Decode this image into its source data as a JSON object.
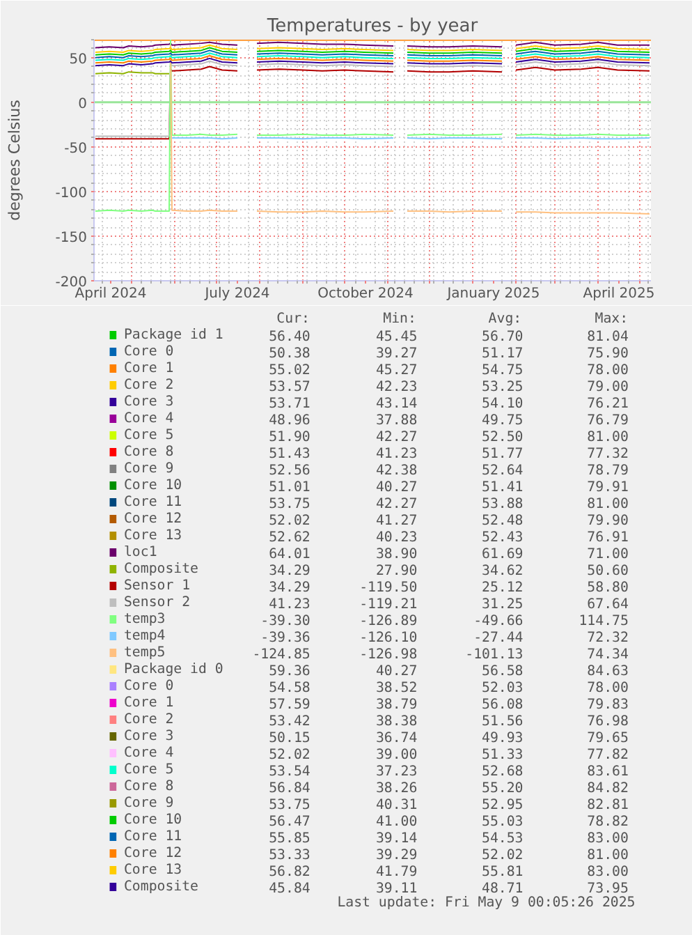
{
  "chart_data": {
    "type": "line",
    "title": "Temperatures - by year",
    "ylabel": "degrees Celsius",
    "x": [
      "2024-04-05",
      "2024-04-15",
      "2024-04-25",
      "2024-04-29",
      "2024-05-08",
      "2024-05-16",
      "2024-05-18",
      "2024-05-28",
      "2024-05-29",
      "2024-05-30",
      "2024-06-10",
      "2024-06-20",
      "2024-06-26",
      "2024-07-05",
      "2024-07-16",
      "2024-07-23",
      "2024-07-30",
      "2024-08-15",
      "2024-09-01",
      "2024-09-15",
      "2024-10-01",
      "2024-10-15",
      "2024-11-05",
      "2024-11-10",
      "2024-11-15",
      "2024-12-01",
      "2024-12-15",
      "2025-01-01",
      "2025-01-22",
      "2025-01-28",
      "2025-02-01",
      "2025-02-15",
      "2025-03-01",
      "2025-03-20",
      "2025-04-01",
      "2025-04-15",
      "2025-05-08"
    ],
    "xlim": [
      "2024-04-04",
      "2025-05-09"
    ],
    "xticks": [
      {
        "value": "2024-04-16",
        "label": "April 2024"
      },
      {
        "value": "2024-05-01",
        "label": null
      },
      {
        "value": "2024-06-01",
        "label": null
      },
      {
        "value": "2024-07-01",
        "label": null
      },
      {
        "value": "2024-07-16",
        "label": "July 2024"
      },
      {
        "value": "2024-08-01",
        "label": null
      },
      {
        "value": "2024-09-01",
        "label": null
      },
      {
        "value": "2024-10-01",
        "label": null
      },
      {
        "value": "2024-10-16",
        "label": "October 2024"
      },
      {
        "value": "2024-11-01",
        "label": null
      },
      {
        "value": "2024-12-01",
        "label": null
      },
      {
        "value": "2025-01-01",
        "label": null
      },
      {
        "value": "2025-01-16",
        "label": "January 2025"
      },
      {
        "value": "2025-02-01",
        "label": null
      },
      {
        "value": "2025-03-01",
        "label": null
      },
      {
        "value": "2025-04-01",
        "label": null
      },
      {
        "value": "2025-04-16",
        "label": "April 2025"
      },
      {
        "value": "2025-05-01",
        "label": null
      }
    ],
    "ylim": [
      -200,
      70
    ],
    "yticks": [
      -200,
      -150,
      -100,
      -50,
      0,
      50
    ],
    "grid": true,
    "legend": "bottom",
    "ref_lines": [
      {
        "axis": "y",
        "value": 0,
        "color": "#99e699"
      },
      {
        "axis": "y",
        "value": 70,
        "color": "#ff8000"
      }
    ],
    "series": [
      {
        "name": "Package id 1",
        "color": "#00cc00",
        "values": [
          null,
          null,
          null,
          null,
          null,
          null,
          null,
          null,
          null,
          null,
          null,
          null,
          null,
          null,
          null,
          null,
          null,
          null,
          null,
          null,
          null,
          null,
          null,
          null,
          null,
          null,
          null,
          null,
          null,
          null,
          null,
          null,
          null,
          null,
          null,
          null,
          null
        ]
      },
      {
        "name": "Core 0",
        "color": "#0066b3",
        "values": [
          null,
          null,
          null,
          null,
          null,
          null,
          null,
          null,
          null,
          null,
          null,
          null,
          null,
          null,
          null,
          null,
          null,
          null,
          null,
          null,
          null,
          null,
          null,
          null,
          null,
          null,
          null,
          null,
          null,
          null,
          null,
          null,
          null,
          null,
          null,
          null,
          null
        ]
      },
      {
        "name": "Core 1",
        "color": "#ff8000",
        "values": [
          null,
          null,
          null,
          null,
          null,
          null,
          null,
          null,
          null,
          null,
          null,
          null,
          null,
          null,
          null,
          null,
          null,
          null,
          null,
          null,
          null,
          null,
          null,
          null,
          null,
          null,
          null,
          null,
          null,
          null,
          null,
          null,
          null,
          null,
          null,
          null,
          null
        ]
      },
      {
        "name": "Core 2",
        "color": "#ffcc00",
        "values": [
          null,
          null,
          null,
          null,
          null,
          null,
          null,
          null,
          null,
          null,
          null,
          null,
          null,
          null,
          null,
          null,
          null,
          null,
          null,
          null,
          null,
          null,
          null,
          null,
          null,
          null,
          null,
          null,
          null,
          null,
          null,
          null,
          null,
          null,
          null,
          null,
          null
        ]
      },
      {
        "name": "Core 3",
        "color": "#330099",
        "values": [
          null,
          null,
          null,
          null,
          null,
          null,
          null,
          null,
          null,
          null,
          null,
          null,
          null,
          null,
          null,
          null,
          null,
          null,
          null,
          null,
          null,
          null,
          null,
          null,
          null,
          null,
          null,
          null,
          null,
          null,
          null,
          null,
          null,
          null,
          null,
          null,
          null
        ]
      },
      {
        "name": "Core 4",
        "color": "#990099",
        "values": [
          null,
          null,
          null,
          null,
          null,
          null,
          null,
          null,
          null,
          null,
          null,
          null,
          null,
          null,
          null,
          null,
          null,
          null,
          null,
          null,
          null,
          null,
          null,
          null,
          null,
          null,
          null,
          null,
          null,
          null,
          null,
          null,
          null,
          null,
          null,
          null,
          null
        ]
      },
      {
        "name": "Core 5",
        "color": "#ccff00",
        "values": [
          null,
          null,
          null,
          null,
          null,
          null,
          null,
          null,
          null,
          null,
          null,
          null,
          null,
          null,
          null,
          null,
          null,
          null,
          null,
          null,
          null,
          null,
          null,
          null,
          null,
          null,
          null,
          null,
          null,
          null,
          null,
          null,
          null,
          null,
          null,
          null,
          null
        ]
      },
      {
        "name": "Core 8",
        "color": "#ff0000",
        "values": [
          null,
          null,
          null,
          null,
          null,
          null,
          null,
          null,
          null,
          null,
          null,
          null,
          null,
          null,
          null,
          null,
          null,
          null,
          null,
          null,
          null,
          null,
          null,
          null,
          null,
          null,
          null,
          null,
          null,
          null,
          null,
          null,
          null,
          null,
          null,
          null,
          null
        ]
      },
      {
        "name": "Core 9",
        "color": "#808080",
        "values": [
          null,
          null,
          null,
          null,
          null,
          null,
          null,
          null,
          null,
          null,
          null,
          null,
          null,
          null,
          null,
          null,
          null,
          null,
          null,
          null,
          null,
          null,
          null,
          null,
          null,
          null,
          null,
          null,
          null,
          null,
          null,
          null,
          null,
          null,
          null,
          null,
          null
        ]
      },
      {
        "name": "Core 10",
        "color": "#008f00",
        "values": [
          null,
          null,
          null,
          null,
          null,
          null,
          null,
          null,
          null,
          null,
          null,
          null,
          null,
          null,
          null,
          null,
          null,
          null,
          null,
          null,
          null,
          null,
          null,
          null,
          null,
          null,
          null,
          null,
          null,
          null,
          null,
          null,
          null,
          null,
          null,
          null,
          null
        ]
      },
      {
        "name": "Core 11",
        "color": "#00487d",
        "values": [
          null,
          null,
          null,
          null,
          null,
          null,
          null,
          null,
          null,
          null,
          null,
          null,
          null,
          null,
          null,
          null,
          null,
          null,
          null,
          null,
          null,
          null,
          null,
          null,
          null,
          null,
          null,
          null,
          null,
          null,
          null,
          null,
          null,
          null,
          null,
          null,
          null
        ]
      },
      {
        "name": "Core 12",
        "color": "#b35a00",
        "values": [
          null,
          null,
          null,
          null,
          null,
          null,
          null,
          null,
          null,
          null,
          null,
          null,
          null,
          null,
          null,
          null,
          null,
          null,
          null,
          null,
          null,
          null,
          null,
          null,
          null,
          null,
          null,
          null,
          null,
          null,
          null,
          null,
          null,
          null,
          null,
          null,
          null
        ]
      },
      {
        "name": "Core 13",
        "color": "#b38f00",
        "values": [
          null,
          null,
          null,
          null,
          null,
          null,
          null,
          null,
          null,
          null,
          null,
          null,
          null,
          null,
          null,
          null,
          null,
          null,
          null,
          null,
          null,
          null,
          null,
          null,
          null,
          null,
          null,
          null,
          null,
          null,
          null,
          null,
          null,
          null,
          null,
          null,
          null
        ]
      },
      {
        "name": "loc1",
        "color": "#6b006b",
        "values": [
          61,
          62,
          61,
          63,
          62,
          63,
          64,
          65,
          66,
          64,
          65,
          66,
          67,
          65,
          64,
          null,
          66,
          67,
          66,
          65,
          65,
          64,
          63,
          null,
          63,
          62,
          62,
          63,
          62,
          null,
          64,
          67,
          64,
          65,
          67,
          64,
          64
        ]
      },
      {
        "name": "Composite",
        "color": "#8fb300",
        "values": [
          32,
          33,
          32,
          34,
          33,
          33,
          32,
          32,
          null,
          null,
          null,
          null,
          null,
          null,
          null,
          null,
          null,
          null,
          null,
          null,
          null,
          null,
          null,
          null,
          null,
          null,
          null,
          null,
          null,
          null,
          null,
          null,
          null,
          null,
          null,
          null,
          null
        ]
      },
      {
        "name": "Sensor 1",
        "color": "#b30000",
        "values": [
          -41,
          -41,
          -41,
          -41,
          -41,
          -41,
          -41,
          -41,
          37,
          35,
          36,
          37,
          40,
          36,
          35,
          null,
          36,
          37,
          36,
          35,
          36,
          35,
          34,
          null,
          35,
          34,
          34,
          35,
          34,
          null,
          36,
          39,
          36,
          37,
          39,
          36,
          35
        ]
      },
      {
        "name": "Sensor 2",
        "color": "#bebebe",
        "values": [
          -38,
          -38,
          -38,
          -38,
          -38,
          -38,
          -38,
          -38,
          43,
          41,
          42,
          43,
          46,
          42,
          41,
          null,
          42,
          43,
          42,
          41,
          42,
          41,
          40,
          null,
          41,
          40,
          40,
          41,
          40,
          null,
          42,
          45,
          42,
          43,
          45,
          42,
          41
        ]
      },
      {
        "name": "temp3",
        "color": "#80ff80",
        "values": [
          -122,
          -121,
          -122,
          -121,
          -122,
          -121,
          -122,
          -122,
          70,
          -37,
          -37,
          -36,
          -37,
          -37,
          -36,
          null,
          -37,
          -37,
          -36,
          -37,
          -37,
          -36,
          -37,
          null,
          -37,
          -36,
          -37,
          -37,
          -36,
          null,
          -37,
          -36,
          -37,
          -37,
          -36,
          -37,
          -37
        ]
      },
      {
        "name": "temp4",
        "color": "#80c9ff",
        "values": [
          null,
          null,
          null,
          null,
          null,
          null,
          null,
          null,
          null,
          -40,
          -40,
          -40,
          -40,
          -41,
          -40,
          null,
          -40,
          -40,
          -41,
          -40,
          -40,
          -41,
          -40,
          null,
          -40,
          -41,
          -40,
          -40,
          -41,
          null,
          -40,
          -40,
          -41,
          -40,
          -41,
          -41,
          -40
        ]
      },
      {
        "name": "temp5",
        "color": "#ffc080",
        "values": [
          null,
          null,
          null,
          null,
          null,
          null,
          null,
          null,
          64,
          -121,
          -122,
          -122,
          -121,
          -122,
          -122,
          null,
          -122,
          -123,
          -123,
          -122,
          -123,
          -123,
          -122,
          null,
          -122,
          -122,
          -123,
          -122,
          -122,
          null,
          -123,
          -123,
          -124,
          -124,
          -124,
          -124,
          -125
        ]
      },
      {
        "name": "Package id 0",
        "color": "#ffe680",
        "values": [
          null,
          null,
          null,
          null,
          null,
          null,
          null,
          null,
          null,
          null,
          null,
          null,
          null,
          null,
          null,
          null,
          null,
          null,
          null,
          null,
          null,
          null,
          null,
          null,
          null,
          null,
          null,
          null,
          null,
          null,
          null,
          null,
          null,
          null,
          null,
          null,
          null
        ]
      },
      {
        "name": "Core 0",
        "color": "#aa80ff",
        "values": [
          null,
          null,
          null,
          null,
          null,
          null,
          null,
          null,
          null,
          null,
          null,
          null,
          null,
          null,
          null,
          null,
          null,
          null,
          null,
          null,
          null,
          null,
          null,
          null,
          null,
          null,
          null,
          null,
          null,
          null,
          null,
          null,
          null,
          null,
          null,
          null,
          null
        ]
      },
      {
        "name": "Core 1",
        "color": "#ee00cc",
        "values": [
          null,
          null,
          null,
          null,
          null,
          null,
          null,
          null,
          null,
          null,
          null,
          null,
          null,
          null,
          null,
          null,
          null,
          null,
          null,
          null,
          null,
          null,
          null,
          null,
          null,
          null,
          null,
          null,
          null,
          null,
          null,
          null,
          null,
          null,
          null,
          null,
          null
        ]
      },
      {
        "name": "Core 2",
        "color": "#ff8080",
        "values": [
          null,
          null,
          null,
          null,
          null,
          null,
          null,
          null,
          null,
          null,
          null,
          null,
          null,
          null,
          null,
          null,
          null,
          null,
          null,
          null,
          null,
          null,
          null,
          null,
          null,
          null,
          null,
          null,
          null,
          null,
          null,
          null,
          null,
          null,
          null,
          null,
          null
        ]
      },
      {
        "name": "Core 3",
        "color": "#666600",
        "values": [
          null,
          null,
          null,
          null,
          null,
          null,
          null,
          null,
          null,
          null,
          null,
          null,
          null,
          null,
          null,
          null,
          null,
          null,
          null,
          null,
          null,
          null,
          null,
          null,
          null,
          null,
          null,
          null,
          null,
          null,
          null,
          null,
          null,
          null,
          null,
          null,
          null
        ]
      },
      {
        "name": "Core 4",
        "color": "#ffbfff",
        "values": [
          null,
          null,
          null,
          null,
          null,
          null,
          null,
          null,
          null,
          null,
          null,
          null,
          null,
          null,
          null,
          null,
          null,
          null,
          null,
          null,
          null,
          null,
          null,
          null,
          null,
          null,
          null,
          null,
          null,
          null,
          null,
          null,
          null,
          null,
          null,
          null,
          null
        ]
      },
      {
        "name": "Core 5",
        "color": "#00ffcc",
        "values": [
          47,
          48,
          47,
          49,
          48,
          49,
          50,
          51,
          52,
          50,
          51,
          52,
          55,
          51,
          50,
          null,
          51,
          52,
          51,
          50,
          51,
          50,
          49,
          null,
          50,
          49,
          49,
          50,
          49,
          null,
          51,
          54,
          51,
          52,
          54,
          51,
          50
        ]
      },
      {
        "name": "Core 8",
        "color": "#cc6699",
        "values": [
          null,
          null,
          null,
          null,
          null,
          null,
          null,
          null,
          null,
          null,
          null,
          null,
          null,
          null,
          null,
          null,
          null,
          null,
          null,
          null,
          null,
          null,
          null,
          null,
          null,
          null,
          null,
          null,
          null,
          null,
          null,
          null,
          null,
          null,
          null,
          null,
          null
        ]
      },
      {
        "name": "Core 9",
        "color": "#999900",
        "values": [
          null,
          null,
          null,
          null,
          null,
          null,
          null,
          null,
          null,
          null,
          null,
          null,
          null,
          null,
          null,
          null,
          null,
          null,
          null,
          null,
          null,
          null,
          null,
          null,
          null,
          null,
          null,
          null,
          null,
          null,
          null,
          null,
          null,
          null,
          null,
          null,
          null
        ]
      },
      {
        "name": "Core 10",
        "color": "#00cc00",
        "values": [
          53,
          54,
          53,
          55,
          54,
          55,
          56,
          57,
          58,
          56,
          57,
          58,
          61,
          57,
          56,
          null,
          57,
          58,
          57,
          56,
          57,
          56,
          55,
          null,
          56,
          55,
          55,
          56,
          55,
          null,
          57,
          60,
          57,
          58,
          60,
          57,
          56
        ]
      },
      {
        "name": "Core 11",
        "color": "#0066b3",
        "values": [
          50,
          51,
          50,
          52,
          51,
          52,
          53,
          54,
          55,
          53,
          54,
          55,
          58,
          54,
          53,
          null,
          54,
          55,
          54,
          53,
          54,
          53,
          52,
          null,
          53,
          52,
          52,
          53,
          52,
          null,
          54,
          57,
          54,
          55,
          57,
          54,
          53
        ]
      },
      {
        "name": "Core 12",
        "color": "#ff8000",
        "values": [
          44,
          45,
          44,
          46,
          45,
          46,
          47,
          48,
          49,
          47,
          48,
          49,
          52,
          48,
          47,
          null,
          48,
          49,
          48,
          47,
          48,
          47,
          46,
          null,
          47,
          46,
          46,
          47,
          46,
          null,
          48,
          51,
          48,
          49,
          51,
          48,
          47
        ]
      },
      {
        "name": "Core 13",
        "color": "#ffcc00",
        "values": [
          56,
          57,
          56,
          58,
          57,
          58,
          59,
          60,
          61,
          59,
          60,
          61,
          64,
          60,
          59,
          null,
          60,
          61,
          60,
          59,
          60,
          59,
          58,
          null,
          59,
          58,
          58,
          59,
          58,
          null,
          60,
          63,
          60,
          61,
          63,
          60,
          59
        ]
      },
      {
        "name": "Composite",
        "color": "#330099",
        "values": [
          41,
          42,
          41,
          43,
          42,
          43,
          44,
          45,
          46,
          44,
          45,
          46,
          49,
          45,
          44,
          null,
          45,
          46,
          45,
          44,
          45,
          44,
          43,
          null,
          44,
          43,
          43,
          44,
          43,
          null,
          45,
          48,
          45,
          46,
          48,
          45,
          44
        ]
      }
    ],
    "annotations": [
      "Cur:",
      "Min:",
      "Avg:",
      "Max:",
      "56.40",
      "45.45",
      "56.70",
      "81.04",
      "50.38",
      "39.27",
      "51.17",
      "75.90",
      "55.02",
      "45.27",
      "54.75",
      "78.00",
      "53.57",
      "42.23",
      "53.25",
      "79.00",
      "53.71",
      "43.14",
      "54.10",
      "76.21",
      "48.96",
      "37.88",
      "49.75",
      "76.79",
      "51.90",
      "42.27",
      "52.50",
      "81.00",
      "51.43",
      "41.23",
      "51.77",
      "77.32",
      "52.56",
      "42.38",
      "52.64",
      "78.79",
      "51.01",
      "40.27",
      "51.41",
      "79.91",
      "53.75",
      "42.27",
      "53.88",
      "81.00",
      "52.02",
      "41.27",
      "52.48",
      "79.90",
      "52.62",
      "40.23",
      "52.43",
      "76.91",
      "64.01",
      "38.90",
      "61.69",
      "71.00",
      "34.29",
      "27.90",
      "34.62",
      "50.60",
      "34.29",
      "-119.50",
      "25.12",
      "58.80",
      "41.23",
      "-119.21",
      "31.25",
      "67.64",
      "-39.30",
      "-126.89",
      "-49.66",
      "114.75",
      "-39.36",
      "-126.10",
      "-27.44",
      "72.32",
      "-124.85",
      "-126.98",
      "-101.13",
      "74.34",
      "59.36",
      "40.27",
      "56.58",
      "84.63",
      "54.58",
      "38.52",
      "52.03",
      "78.00",
      "57.59",
      "38.79",
      "56.08",
      "79.83",
      "53.42",
      "38.38",
      "51.56",
      "76.98",
      "50.15",
      "36.74",
      "49.93",
      "79.65",
      "52.02",
      "39.00",
      "51.33",
      "77.82",
      "53.54",
      "37.23",
      "52.68",
      "83.61",
      "56.84",
      "38.26",
      "55.20",
      "84.82",
      "53.75",
      "40.31",
      "52.95",
      "82.81",
      "56.47",
      "41.00",
      "55.03",
      "78.82",
      "55.85",
      "39.14",
      "54.53",
      "83.00",
      "53.33",
      "39.29",
      "52.02",
      "81.00",
      "56.82",
      "41.79",
      "55.81",
      "83.00",
      "45.84",
      "39.11",
      "48.71",
      "73.95",
      "Last update: Fri May 9 00:05:26 2025"
    ]
  }
}
